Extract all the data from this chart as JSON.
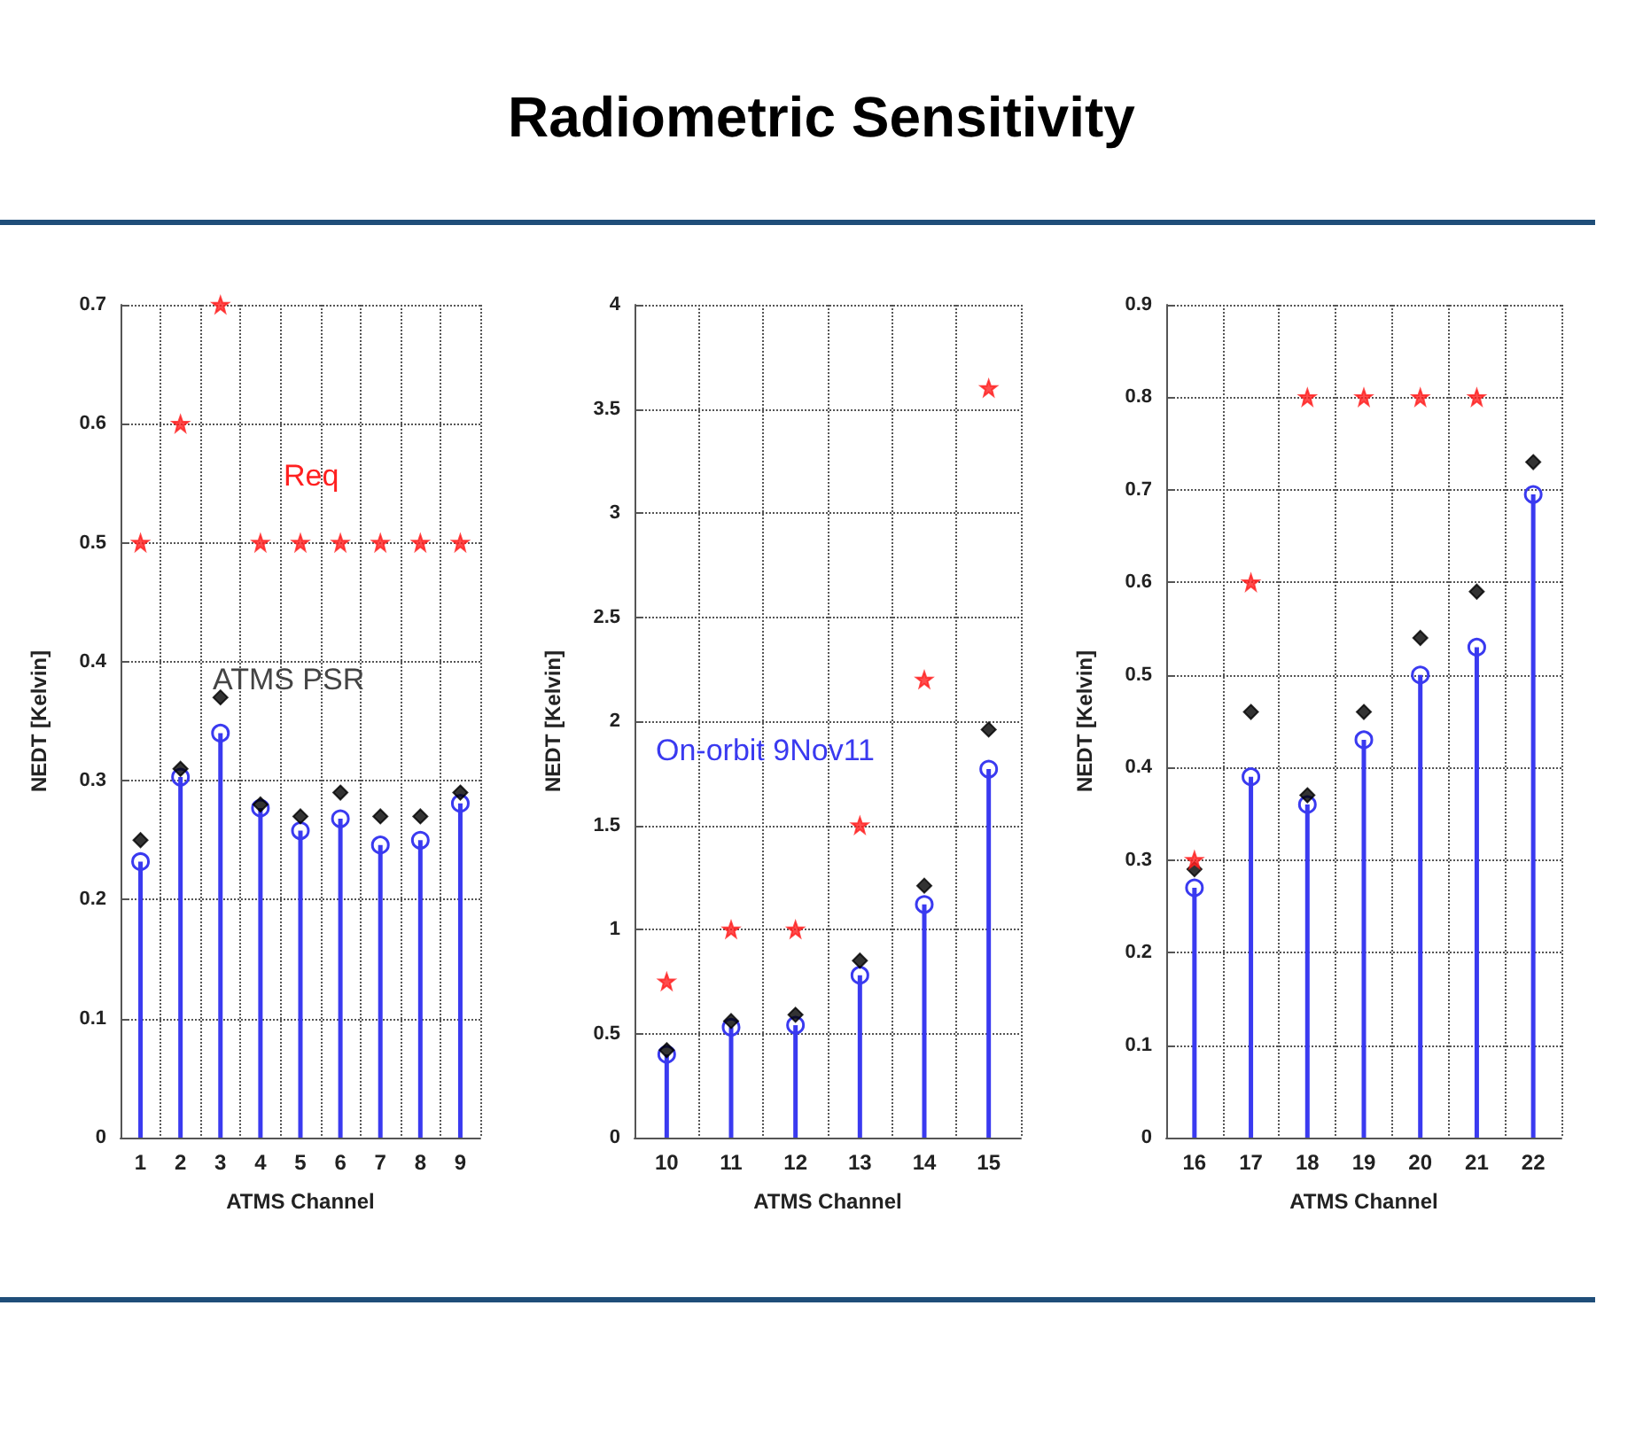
{
  "chart_data": [
    {
      "type": "scatter",
      "xlabel": "ATMS Channel",
      "ylabel": "NEDT [Kelvin]",
      "categories": [
        "1",
        "2",
        "3",
        "4",
        "5",
        "6",
        "7",
        "8",
        "9"
      ],
      "ylim": [
        0,
        0.7
      ],
      "yticks": [
        0,
        0.1,
        0.2,
        0.3,
        0.4,
        0.5,
        0.6,
        0.7
      ],
      "grid": true,
      "series": [
        {
          "name": "Req",
          "marker": "star",
          "color": "#ff2020",
          "values": [
            0.5,
            0.6,
            0.7,
            0.5,
            0.5,
            0.5,
            0.5,
            0.5,
            0.5
          ]
        },
        {
          "name": "ATMS PSR",
          "marker": "diamond",
          "color": "#000000",
          "values": [
            0.25,
            0.31,
            0.37,
            0.28,
            0.27,
            0.29,
            0.27,
            0.27,
            0.29
          ]
        },
        {
          "type": "lollipop",
          "marker": "circle",
          "color": "#3a3af0",
          "values": [
            0.232,
            0.303,
            0.34,
            0.277,
            0.258,
            0.268,
            0.246,
            0.25,
            0.281
          ]
        }
      ]
    },
    {
      "type": "scatter",
      "title": "Radiometric Sensitivity",
      "xlabel": "ATMS Channel",
      "ylabel": "NEDT [Kelvin]",
      "categories": [
        "10",
        "11",
        "12",
        "13",
        "14",
        "15"
      ],
      "ylim": [
        0,
        4
      ],
      "yticks": [
        0,
        0.5,
        1,
        1.5,
        2,
        2.5,
        3,
        3.5,
        4
      ],
      "grid": true,
      "series": [
        {
          "marker": "star",
          "color": "#ff2020",
          "values": [
            0.75,
            1,
            1,
            1.5,
            2.2,
            3.6
          ]
        },
        {
          "marker": "diamond",
          "color": "#000000",
          "values": [
            0.42,
            0.56,
            0.59,
            0.85,
            1.21,
            1.96
          ]
        },
        {
          "name": "On-orbit 9Nov11",
          "type": "lollipop",
          "marker": "circle",
          "color": "#3a3af0",
          "values": [
            0.4,
            0.53,
            0.54,
            0.78,
            1.12,
            1.77
          ]
        }
      ]
    },
    {
      "type": "scatter",
      "xlabel": "ATMS Channel",
      "ylabel": "NEDT [Kelvin]",
      "categories": [
        "16",
        "17",
        "18",
        "19",
        "20",
        "21",
        "22"
      ],
      "ylim": [
        0,
        0.9
      ],
      "yticks": [
        0,
        0.1,
        0.2,
        0.3,
        0.4,
        0.5,
        0.6,
        0.7,
        0.8,
        0.9
      ],
      "grid": true,
      "series": [
        {
          "marker": "star",
          "color": "#ff2020",
          "values": [
            0.3,
            0.6,
            0.8,
            0.8,
            0.8,
            0.8,
            null
          ]
        },
        {
          "marker": "diamond",
          "color": "#000000",
          "values": [
            0.29,
            0.46,
            0.37,
            0.46,
            0.54,
            0.59,
            0.73
          ]
        },
        {
          "type": "lollipop",
          "marker": "circle",
          "color": "#3a3af0",
          "values": [
            0.27,
            0.39,
            0.36,
            0.43,
            0.5,
            0.53,
            0.695
          ]
        }
      ]
    }
  ]
}
